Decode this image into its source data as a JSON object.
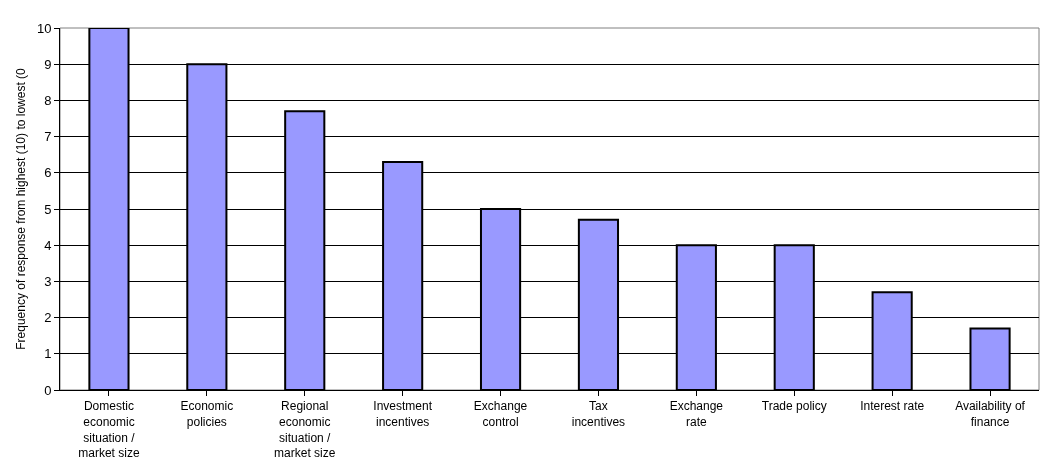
{
  "chart_data": {
    "type": "bar",
    "ylabel": "Frequency of response from highest (10) to lowest (0",
    "categories": [
      "Domestic\neconomic\nsituation /\nmarket size",
      "Economic\npolicies",
      "Regional\neconomic\nsituation /\nmarket size",
      "Investment\nincentives",
      "Exchange\ncontrol",
      "Tax\nincentives",
      "Exchange\nrate",
      "Trade policy",
      "Interest rate",
      "Availability of\nfinance"
    ],
    "values": [
      10,
      9,
      7.7,
      6.3,
      5,
      4.7,
      4,
      4,
      2.7,
      1.7
    ],
    "color": "#9999ff",
    "ylim": [
      0,
      10
    ],
    "yticks": [
      0,
      1,
      2,
      3,
      4,
      5,
      6,
      7,
      8,
      9,
      10
    ],
    "grid": "y"
  }
}
